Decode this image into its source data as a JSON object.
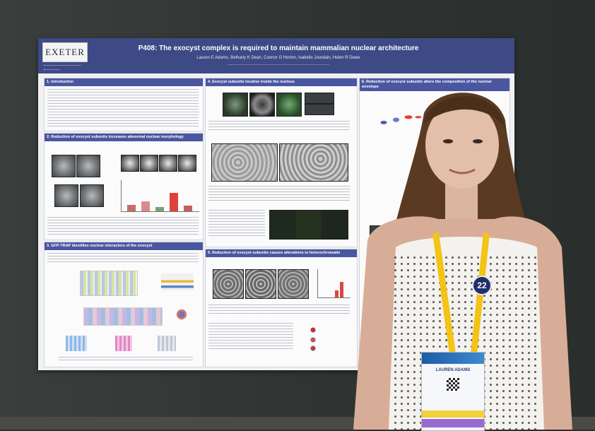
{
  "poster": {
    "logo": "EXETER",
    "title": "P408: The exocyst complex is required to maintain mammalian nuclear architecture",
    "authors": "Lauren E Adams, Bethany K Dean, Connor G Horton, Isabelle Jourdain, Helen R Dawe",
    "sections": {
      "s1": "1. Introduction",
      "s2": "2. Reduction of exocyst subunits increases abnormal nuclear morphology",
      "s3": "3. GFP-TRAP identifies nuclear interactors of the exocyst",
      "s4": "4. Exocyst subunits localise inside the nucleus",
      "s5": "5. Reduction of exocyst subunits causes alterations to heterochromatin",
      "s6": "6. Reduction of exocyst subunits alters the composition of the nuclear envelope"
    }
  },
  "badge": {
    "name": "LAUREN ADAMS",
    "number": "22"
  },
  "colors": {
    "poster_header": "#3d4a86",
    "section_header": "#4a57a0",
    "lanyard": "#f3c316",
    "board": "#2f3432"
  }
}
